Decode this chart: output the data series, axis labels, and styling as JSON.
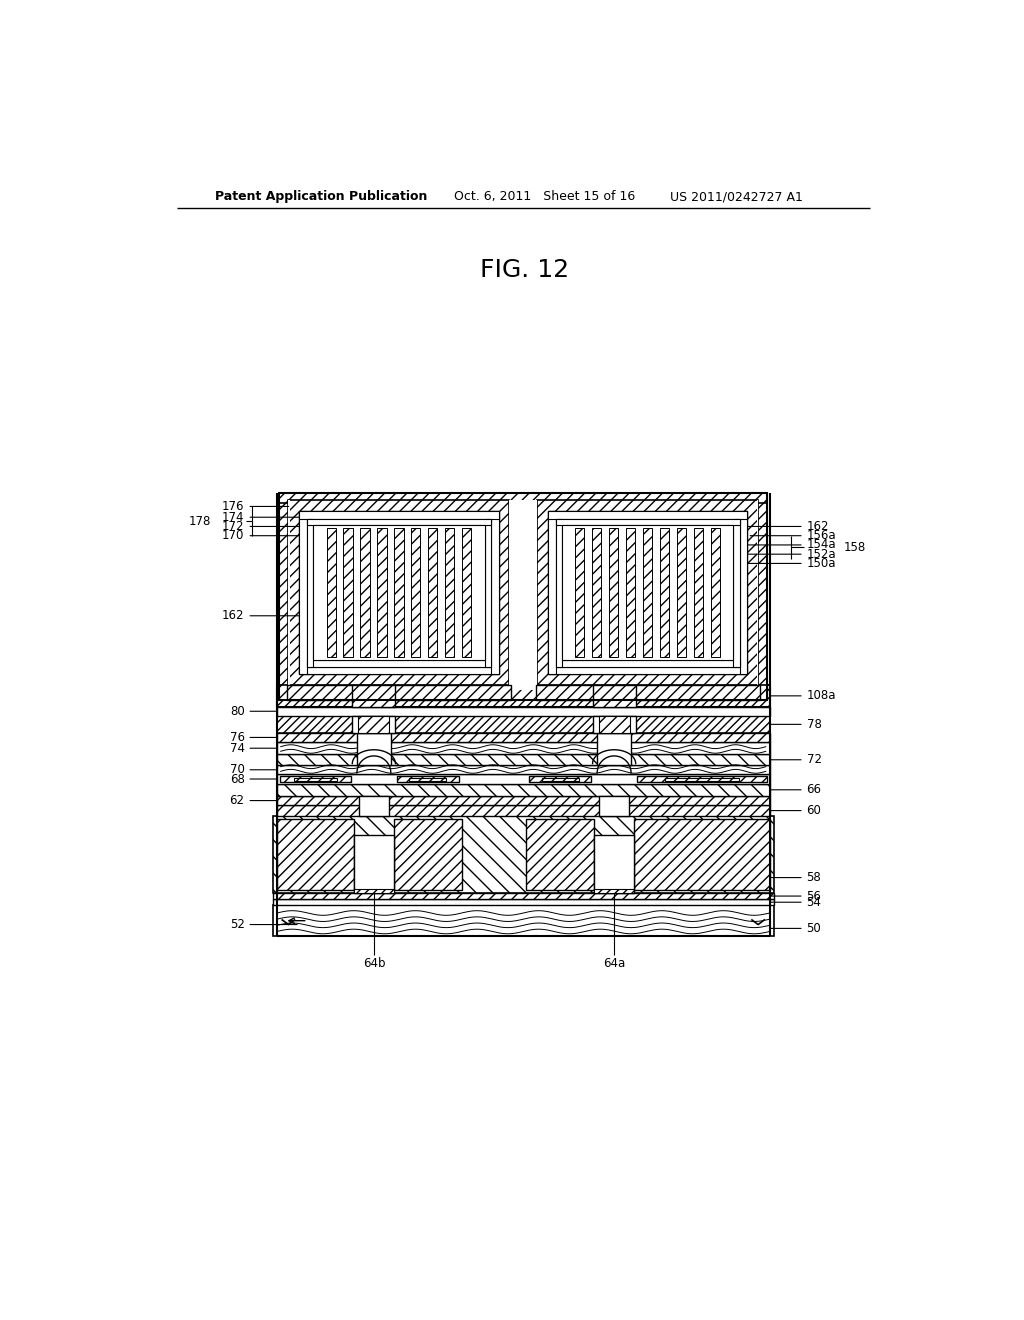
{
  "title": "FIG. 12",
  "header_left": "Patent Application Publication",
  "header_mid": "Oct. 6, 2011   Sheet 15 of 16",
  "header_right": "US 2011/0242727 A1",
  "bg_color": "#ffffff",
  "fig_width": 10.24,
  "fig_height": 13.2
}
